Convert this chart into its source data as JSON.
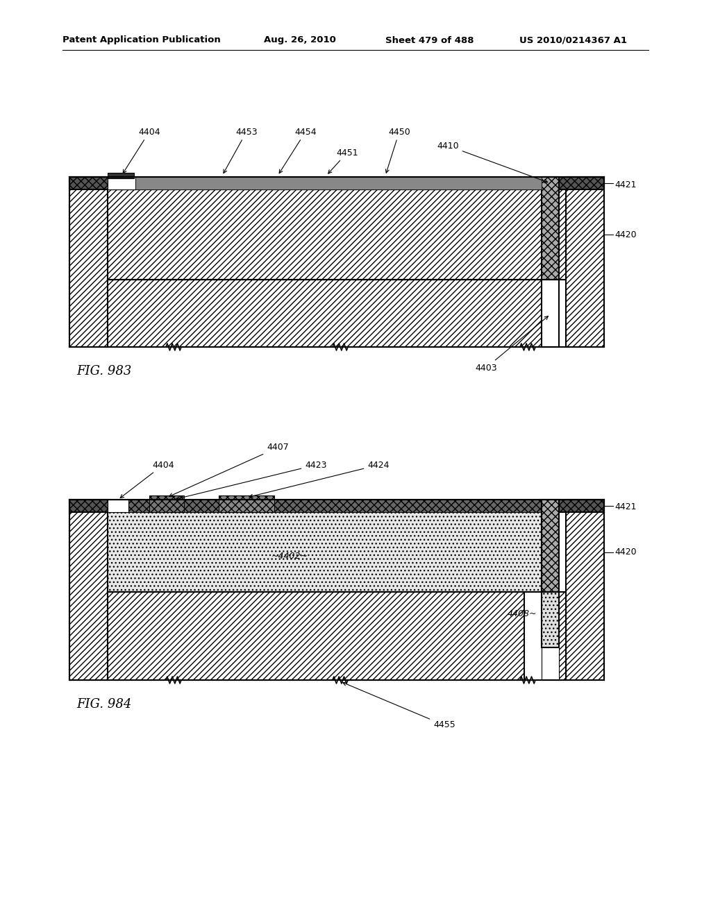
{
  "header_text": "Patent Application Publication",
  "header_date": "Aug. 26, 2010",
  "header_sheet": "Sheet 479 of 488",
  "header_patent": "US 2010/0214367 A1",
  "fig983_label": "FIG. 983",
  "fig984_label": "FIG. 984",
  "bg_color": "#ffffff"
}
